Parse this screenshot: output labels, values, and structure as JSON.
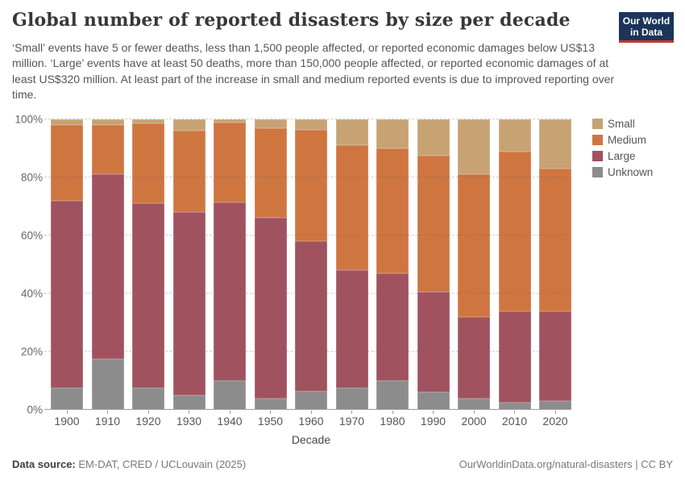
{
  "header": {
    "title": "Global number of reported disasters by size per decade",
    "subtitle": "‘Small’ events have 5 or fewer deaths, less than 1,500 people affected, or reported economic damages below US$13 million. ‘Large’ events have at least 50 deaths, more than 150,000 people affected, or reported economic damages of at least US$320 million. At least part of the increase in small and medium reported events is due to improved reporting over time.",
    "logo": {
      "line1": "Our World",
      "line2": "in Data",
      "bg_color": "#1B3458",
      "stripe_color": "#C6382C"
    }
  },
  "chart_data": {
    "type": "bar",
    "stacked": true,
    "unit": "%",
    "title": "Global number of reported disasters by size per decade",
    "xlabel": "Decade",
    "ylabel": "",
    "ylim": [
      0,
      100
    ],
    "yticks": [
      "0%",
      "20%",
      "40%",
      "60%",
      "80%",
      "100%"
    ],
    "grid": "dashed-horizontal",
    "legend_position": "right",
    "categories": [
      "1900",
      "1910",
      "1920",
      "1930",
      "1940",
      "1950",
      "1960",
      "1970",
      "1980",
      "1990",
      "2000",
      "2010",
      "2020"
    ],
    "series": [
      {
        "name": "Small",
        "color": "#C7A273",
        "values": [
          2,
          2,
          1.5,
          4,
          1,
          3,
          3.5,
          9,
          10,
          12.5,
          19,
          11,
          17
        ]
      },
      {
        "name": "Medium",
        "color": "#CF7540",
        "values": [
          26,
          17,
          27.5,
          28,
          27.5,
          31,
          38.5,
          43,
          43,
          47,
          49,
          55,
          49
        ]
      },
      {
        "name": "Large",
        "color": "#A0525F",
        "values": [
          64.5,
          63.5,
          63.5,
          63,
          61.5,
          62,
          51.5,
          40.5,
          37,
          34.5,
          28,
          31.5,
          31
        ]
      },
      {
        "name": "Unknown",
        "color": "#8C8C8C",
        "values": [
          7.5,
          17.5,
          7.5,
          5,
          10,
          4,
          6.5,
          7.5,
          10,
          6,
          4,
          2.5,
          3
        ]
      }
    ]
  },
  "footer": {
    "source_label": "Data source:",
    "source_value": "EM-DAT, CRED / UCLouvain (2025)",
    "link": "OurWorldinData.org/natural-disasters",
    "separator": " | ",
    "license": "CC BY"
  }
}
